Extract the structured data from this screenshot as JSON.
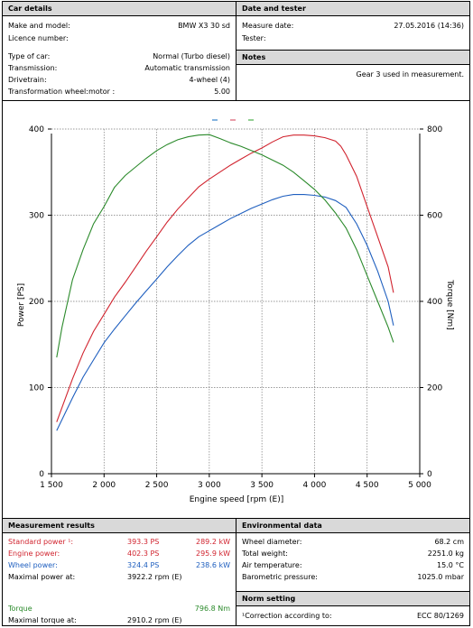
{
  "car": {
    "title": "Car details",
    "rows": [
      {
        "label": "Make and model:",
        "value": "BMW X3 30 sd"
      },
      {
        "label": "Licence number:",
        "value": ""
      },
      {
        "label": "Type of car:",
        "value": "Normal (Turbo diesel)"
      },
      {
        "label": "Transmission:",
        "value": "Automatic transmission"
      },
      {
        "label": "Drivetrain:",
        "value": "4-wheel (4)"
      },
      {
        "label": "Transformation wheel:motor :",
        "value": "5.00"
      }
    ]
  },
  "date": {
    "title": "Date and tester",
    "measure_label": "Measure date:",
    "measure_value": "27.05.2016 (14:36)",
    "tester_label": "Tester:",
    "tester_value": ""
  },
  "notes": {
    "title": "Notes",
    "text": "Gear 3 used in measurement."
  },
  "chart_data": {
    "type": "line",
    "xlabel": "Engine speed [rpm (E)]",
    "ylabel": "Power [PS]",
    "y2label": "Torque [Nm]",
    "xlim": [
      1500,
      5000
    ],
    "ylim": [
      0,
      400
    ],
    "y2lim": [
      0,
      800
    ],
    "xticks": [
      "1 500",
      "2 000",
      "2 500",
      "3 000",
      "3 500",
      "4 000",
      "4 500",
      "5 000"
    ],
    "yticks": [
      "0",
      "100",
      "200",
      "300",
      "400"
    ],
    "y2ticks": [
      "200",
      "400",
      "600",
      "800"
    ],
    "series": [
      {
        "color": "#d1242f",
        "axis": "left",
        "x": [
          1550,
          1700,
          1800,
          1900,
          2000,
          2100,
          2200,
          2300,
          2400,
          2500,
          2600,
          2700,
          2800,
          2900,
          3000,
          3100,
          3200,
          3300,
          3400,
          3500,
          3600,
          3700,
          3800,
          3900,
          4000,
          4100,
          4200,
          4250,
          4300,
          4400,
          4500,
          4600,
          4700,
          4750
        ],
        "y": [
          60,
          110,
          140,
          165,
          185,
          205,
          222,
          240,
          258,
          275,
          292,
          307,
          320,
          333,
          342,
          350,
          358,
          365,
          372,
          378,
          385,
          391,
          393,
          393,
          392,
          390,
          386,
          380,
          370,
          345,
          310,
          275,
          240,
          210
        ]
      },
      {
        "color": "#1f5fbf",
        "axis": "left",
        "x": [
          1550,
          1700,
          1800,
          1900,
          2000,
          2100,
          2200,
          2300,
          2400,
          2500,
          2600,
          2700,
          2800,
          2900,
          3000,
          3100,
          3200,
          3300,
          3400,
          3500,
          3600,
          3700,
          3800,
          3900,
          4000,
          4100,
          4200,
          4300,
          4400,
          4500,
          4600,
          4700,
          4750
        ],
        "y": [
          50,
          88,
          112,
          132,
          152,
          168,
          183,
          198,
          212,
          226,
          240,
          253,
          265,
          275,
          282,
          289,
          296,
          302,
          308,
          313,
          318,
          322,
          324,
          324,
          323,
          321,
          317,
          309,
          290,
          265,
          235,
          200,
          172
        ]
      },
      {
        "color": "#2b8a2b",
        "axis": "right",
        "x": [
          1550,
          1600,
          1700,
          1800,
          1900,
          2000,
          2100,
          2200,
          2300,
          2400,
          2500,
          2600,
          2700,
          2800,
          2900,
          3000,
          3100,
          3200,
          3300,
          3400,
          3500,
          3600,
          3700,
          3800,
          3900,
          4000,
          4100,
          4200,
          4300,
          4400,
          4500,
          4600,
          4700,
          4750
        ],
        "y": [
          270,
          340,
          450,
          520,
          580,
          620,
          665,
          692,
          712,
          732,
          750,
          764,
          775,
          782,
          786,
          787,
          778,
          768,
          760,
          750,
          740,
          728,
          716,
          700,
          680,
          660,
          635,
          605,
          570,
          520,
          460,
          400,
          340,
          305
        ]
      }
    ]
  },
  "results": {
    "title": "Measurement results",
    "rows": [
      {
        "label": "Standard power ¹:",
        "ps": "393.3 PS",
        "kw": "289.2 kW",
        "color": "red"
      },
      {
        "label": "Engine power:",
        "ps": "402.3 PS",
        "kw": "295.9 kW",
        "color": "red"
      },
      {
        "label": "Wheel power:",
        "ps": "324.4 PS",
        "kw": "238.6 kW",
        "color": "blue"
      }
    ],
    "max_power_label": "Maximal power at:",
    "max_power_value": "3922.2 rpm (E)",
    "torque_label": "Torque",
    "torque_value": "796.8 Nm",
    "max_torque_label": "Maximal torque at:",
    "max_torque_value": "2910.2 rpm (E)"
  },
  "env": {
    "title": "Environmental data",
    "rows": [
      {
        "label": "Wheel diameter:",
        "value": "68.2 cm"
      },
      {
        "label": "Total weight:",
        "value": "2251.0 kg"
      },
      {
        "label": "Air temperature:",
        "value": "15.0 °C"
      },
      {
        "label": "Barometric pressure:",
        "value": "1025.0 mbar"
      }
    ]
  },
  "norm": {
    "title": "Norm setting",
    "label": "¹Correction according to:",
    "value": "ECC 80/1269"
  }
}
